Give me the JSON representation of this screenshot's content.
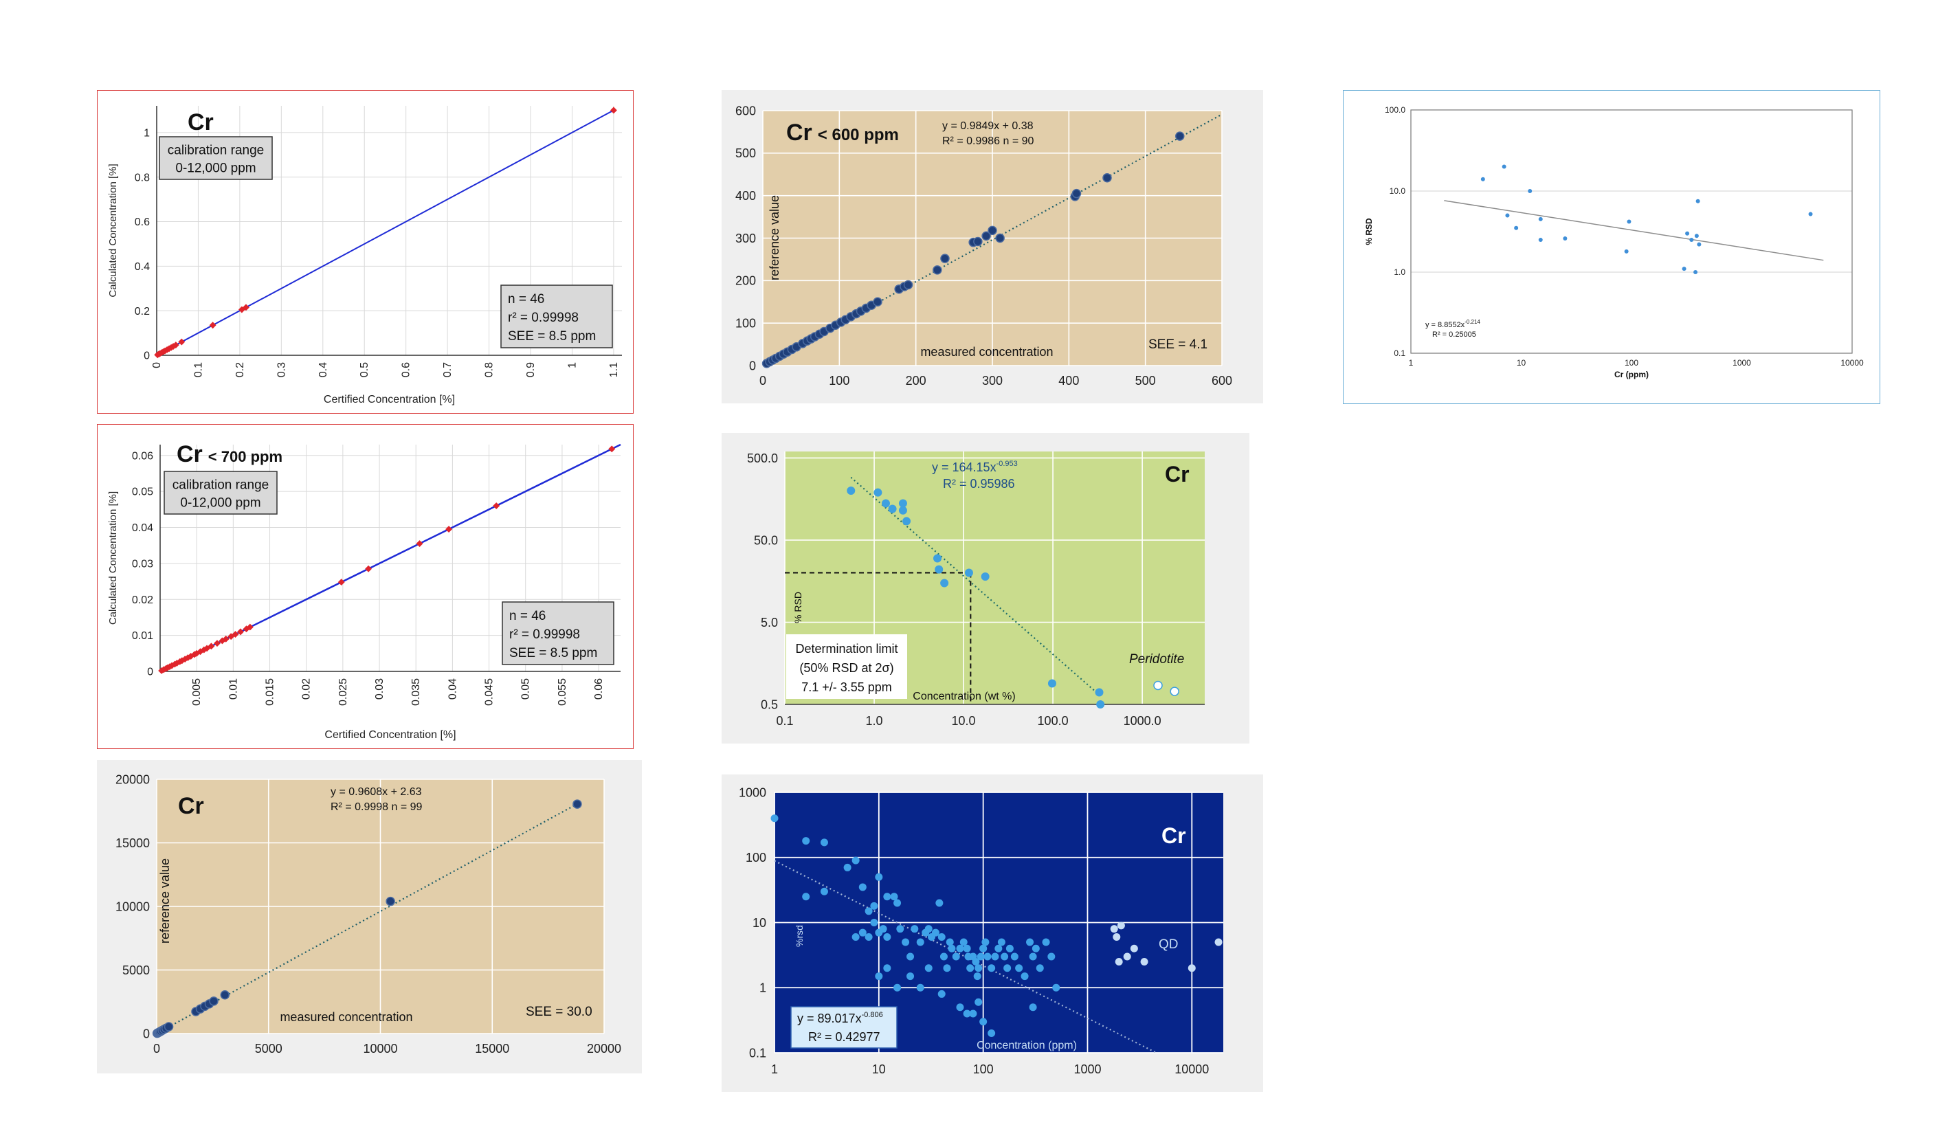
{
  "chart_data": [
    {
      "id": "A",
      "type": "scatter",
      "theme": {
        "bg": "#ffffff",
        "plot": "#ffffff",
        "grid": "#d9d9d9",
        "border": "#d93a3a",
        "point": "#e0242b",
        "line": "#1f2bd6"
      },
      "title": "Cr",
      "xlabel": "Certified Concentration [%]",
      "ylabel": "Calculated Concentration [%]",
      "xlim": [
        0,
        1.12
      ],
      "ylim": [
        0,
        1.12
      ],
      "xticks": [
        0,
        0.1,
        0.2,
        0.3,
        0.4,
        0.5,
        0.6,
        0.7,
        0.8,
        0.9,
        1,
        1.1
      ],
      "xtick_labels": [
        "0",
        "0.1",
        "0.2",
        "0.3",
        "0.4",
        "0.5",
        "0.6",
        "0.7",
        "0.8",
        "0.9",
        "1",
        "1.1"
      ],
      "yticks": [
        0,
        0.2,
        0.4,
        0.6,
        0.8,
        1
      ],
      "ytick_labels": [
        "0",
        "0.2",
        "0.4",
        "0.6",
        "0.8",
        "1"
      ],
      "x": [
        0.002,
        0.005,
        0.008,
        0.012,
        0.016,
        0.02,
        0.025,
        0.03,
        0.035,
        0.04,
        0.046,
        0.06,
        0.135,
        0.205,
        0.215,
        1.1
      ],
      "y": [
        0.002,
        0.005,
        0.008,
        0.012,
        0.016,
        0.02,
        0.025,
        0.03,
        0.035,
        0.04,
        0.046,
        0.06,
        0.135,
        0.205,
        0.215,
        1.1
      ],
      "fit": {
        "x": [
          0,
          1.1
        ],
        "y": [
          0,
          1.1
        ]
      },
      "boxes": [
        "calibration range\n0-12,000 ppm",
        "n = 46\nr² = 0.99998\nSEE = 8.5 ppm"
      ]
    },
    {
      "id": "B",
      "type": "scatter",
      "theme": {
        "bg": "#ffffff",
        "plot": "#ffffff",
        "grid": "#d9d9d9",
        "border": "#d93a3a",
        "point": "#e0242b",
        "line": "#1f2bd6"
      },
      "title": "Cr",
      "title_suffix": "< 700 ppm",
      "xlabel": "Certified Concentration [%]",
      "ylabel": "Calculated Concentration [%]",
      "xlim": [
        0,
        0.063
      ],
      "ylim": [
        0,
        0.063
      ],
      "xticks": [
        0.005,
        0.01,
        0.015,
        0.02,
        0.025,
        0.03,
        0.035,
        0.04,
        0.045,
        0.05,
        0.055,
        0.06
      ],
      "xtick_labels": [
        "0.005",
        "0.01",
        "0.015",
        "0.02",
        "0.025",
        "0.03",
        "0.035",
        "0.04",
        "0.045",
        "0.05",
        "0.055",
        "0.06"
      ],
      "yticks": [
        0,
        0.01,
        0.02,
        0.03,
        0.04,
        0.05,
        0.06
      ],
      "ytick_labels": [
        "0",
        "0.01",
        "0.02",
        "0.03",
        "0.04",
        "0.05",
        "0.06"
      ],
      "x": [
        0.0002,
        0.0005,
        0.0008,
        0.001,
        0.0013,
        0.0016,
        0.002,
        0.0023,
        0.0027,
        0.003,
        0.0034,
        0.0038,
        0.0042,
        0.0047,
        0.005,
        0.0055,
        0.006,
        0.0064,
        0.007,
        0.0078,
        0.0085,
        0.009,
        0.0097,
        0.0103,
        0.011,
        0.0118,
        0.0123,
        0.0248,
        0.0285,
        0.0355,
        0.0395,
        0.046,
        0.0618
      ],
      "y": [
        0.0002,
        0.0005,
        0.0008,
        0.001,
        0.0013,
        0.0016,
        0.002,
        0.0023,
        0.0027,
        0.003,
        0.0034,
        0.0038,
        0.0042,
        0.0047,
        0.005,
        0.0055,
        0.006,
        0.0064,
        0.007,
        0.0078,
        0.0085,
        0.009,
        0.0097,
        0.0103,
        0.011,
        0.0118,
        0.0123,
        0.0248,
        0.0285,
        0.0355,
        0.0395,
        0.046,
        0.0618
      ],
      "fit": {
        "x": [
          0,
          0.063
        ],
        "y": [
          0,
          0.063
        ]
      },
      "boxes": [
        "calibration range\n0-12,000 ppm",
        "n = 46\nr² = 0.99998\nSEE = 8.5 ppm"
      ]
    },
    {
      "id": "C",
      "type": "scatter",
      "theme": {
        "bg": "#efefef",
        "plot": "#e2ceaa",
        "grid": "#ffffff",
        "point": "#1f3f7a",
        "line": "#1f5f6a"
      },
      "title": "Cr",
      "xlabel": "measured concentration",
      "ylabel": "reference value",
      "xlim": [
        0,
        20000
      ],
      "ylim": [
        0,
        20000
      ],
      "xticks": [
        0,
        5000,
        10000,
        15000,
        20000
      ],
      "xtick_labels": [
        "0",
        "5000",
        "10000",
        "15000",
        "20000"
      ],
      "yticks": [
        0,
        5000,
        10000,
        15000,
        20000
      ],
      "ytick_labels": [
        "0",
        "5000",
        "10000",
        "15000",
        "20000"
      ],
      "x": [
        20,
        50,
        90,
        130,
        180,
        250,
        330,
        420,
        540,
        1750,
        1950,
        2150,
        2350,
        2550,
        3050,
        10450,
        18800
      ],
      "y": [
        20,
        50,
        90,
        130,
        180,
        250,
        330,
        420,
        540,
        1730,
        1940,
        2140,
        2330,
        2550,
        3040,
        10400,
        18050
      ],
      "fit": {
        "x": [
          0,
          18800
        ],
        "y": [
          2.63,
          18065
        ]
      },
      "equation": [
        "y = 0.9608x + 2.63",
        "R² = 0.9998  n = 99"
      ],
      "see": "SEE = 30.0"
    },
    {
      "id": "D",
      "type": "scatter",
      "theme": {
        "bg": "#efefef",
        "plot": "#e2ceaa",
        "grid": "#ffffff",
        "point": "#1f3f7a",
        "line": "#1f5f6a"
      },
      "title": "Cr",
      "title_suffix": "< 600 ppm",
      "xlabel": "measured concentration",
      "ylabel": "reference value",
      "xlim": [
        0,
        600
      ],
      "ylim": [
        0,
        600
      ],
      "xticks": [
        0,
        100,
        200,
        300,
        400,
        500,
        600
      ],
      "xtick_labels": [
        "0",
        "100",
        "200",
        "300",
        "400",
        "500",
        "600"
      ],
      "yticks": [
        0,
        100,
        200,
        300,
        400,
        500,
        600
      ],
      "ytick_labels": [
        "0",
        "100",
        "200",
        "300",
        "400",
        "500",
        "600"
      ],
      "x": [
        5,
        9,
        13,
        17,
        22,
        27,
        32,
        38,
        44,
        52,
        58,
        63,
        68,
        74,
        80,
        88,
        95,
        102,
        108,
        115,
        122,
        128,
        135,
        142,
        150,
        178,
        185,
        190,
        228,
        238,
        275,
        281,
        292,
        300,
        310,
        408,
        410,
        450,
        545
      ],
      "y": [
        5,
        9,
        13,
        17,
        22,
        27,
        32,
        38,
        44,
        52,
        58,
        63,
        68,
        74,
        80,
        88,
        95,
        102,
        108,
        115,
        122,
        128,
        135,
        142,
        150,
        180,
        186,
        190,
        225,
        252,
        290,
        292,
        305,
        318,
        300,
        398,
        405,
        442,
        540
      ],
      "fit": {
        "x": [
          0,
          600
        ],
        "y": [
          0.38,
          591.3
        ]
      },
      "equation": [
        "y = 0.9849x + 0.38",
        "R² = 0.9986  n = 90"
      ],
      "see": "SEE = 4.1"
    },
    {
      "id": "E",
      "type": "scatter",
      "theme": {
        "bg": "#efefef",
        "plot": "#c9dc8d",
        "grid": "#ffffff",
        "point": "#3ea0e0",
        "line": "#1f6f6a"
      },
      "title": "Cr",
      "xlabel": "Concentration (wt %)",
      "ylabel": "% RSD",
      "xscale": "log",
      "yscale": "log",
      "xlim": [
        0.1,
        5000
      ],
      "ylim": [
        0.5,
        600
      ],
      "xticks": [
        0.1,
        1,
        10,
        100,
        1000
      ],
      "xtick_labels": [
        "0.1",
        "1.0",
        "10.0",
        "100.0",
        "1000.0"
      ],
      "yticks": [
        0.5,
        5,
        50,
        500
      ],
      "ytick_labels": [
        "0.5",
        "5.0",
        "50.0",
        "500.0"
      ],
      "x": [
        0.55,
        1.1,
        1.35,
        1.6,
        2.1,
        2.1,
        2.3,
        5.1,
        5.3,
        6.1,
        11.5,
        17.5,
        98,
        330,
        340
      ],
      "y": [
        200,
        190,
        140,
        120,
        140,
        115,
        85,
        30,
        22,
        15,
        20,
        18,
        0.9,
        0.7,
        0.5
      ],
      "open_points": {
        "x": [
          1500,
          2300
        ],
        "y": [
          0.85,
          0.72
        ],
        "label": "Peridotite"
      },
      "fit": {
        "coef": 164.15,
        "exp": -0.953,
        "x": [
          0.55,
          350
        ]
      },
      "determination": {
        "x": 12,
        "y": 20
      },
      "equation": [
        "y = 164.15x",
        "-0.953",
        "R² = 0.95986"
      ],
      "box": [
        "Determination limit",
        "(50% RSD at 2σ)",
        "7.1 +/- 3.55 ppm"
      ]
    },
    {
      "id": "F",
      "type": "scatter",
      "theme": {
        "bg": "#efefef",
        "plot": "#07258a",
        "grid": "#ffffff",
        "point": "#3fa2e8",
        "qd": "#c6ddf5",
        "line": "#9fb3d6"
      },
      "title": "Cr",
      "xlabel": "Concentration (ppm)",
      "ylabel": "%rsd",
      "xscale": "log",
      "yscale": "log",
      "xlim": [
        1,
        20000
      ],
      "ylim": [
        0.1,
        1000
      ],
      "xticks": [
        1,
        10,
        100,
        1000,
        10000
      ],
      "xtick_labels": [
        "1",
        "10",
        "100",
        "1000",
        "10000"
      ],
      "yticks": [
        0.1,
        1,
        10,
        100,
        1000
      ],
      "ytick_labels": [
        "0.1",
        "1",
        "10",
        "100",
        "1000"
      ],
      "x": [
        1,
        2,
        3,
        2,
        3,
        5,
        6,
        7,
        8,
        9,
        10,
        11,
        12,
        8,
        6,
        7,
        9,
        10,
        12,
        14,
        15,
        16,
        18,
        20,
        22,
        25,
        28,
        30,
        32,
        35,
        38,
        40,
        42,
        45,
        48,
        50,
        55,
        60,
        65,
        70,
        72,
        75,
        80,
        85,
        88,
        90,
        95,
        100,
        105,
        110,
        120,
        130,
        140,
        150,
        160,
        170,
        180,
        200,
        220,
        250,
        280,
        300,
        320,
        350,
        400,
        450,
        500,
        15,
        20,
        30,
        60,
        70,
        90,
        100,
        80,
        120,
        300,
        25,
        40,
        10,
        12,
        100
      ],
      "y": [
        400,
        180,
        170,
        25,
        30,
        70,
        90,
        35,
        15,
        18,
        50,
        8,
        6,
        6,
        6,
        7,
        10,
        7,
        25,
        25,
        20,
        8,
        5,
        3,
        8,
        5,
        7,
        8,
        6,
        7,
        20,
        6,
        3,
        2,
        5,
        4,
        3,
        4,
        5,
        4,
        3,
        2,
        3,
        2.5,
        1.5,
        2,
        3,
        4,
        5,
        3,
        2,
        3,
        4,
        5,
        3,
        2,
        4,
        3,
        2,
        1.5,
        5,
        3,
        4,
        2,
        5,
        3,
        1,
        1,
        1.5,
        2,
        0.5,
        0.4,
        0.6,
        0.3,
        0.4,
        0.2,
        0.5,
        1,
        0.8,
        1.5,
        2,
        4
      ],
      "qd_points": {
        "x": [
          1800,
          1900,
          2000,
          2100,
          2400,
          2800,
          3500,
          10000,
          18000
        ],
        "y": [
          8,
          6,
          2.5,
          9,
          3,
          4,
          2.5,
          2,
          5
        ],
        "label": "QD"
      },
      "fit": {
        "coef": 89.017,
        "exp": -0.806,
        "x": [
          1,
          4500
        ]
      },
      "equation": [
        "y = 89.017x",
        "-0.806",
        "R² = 0.42977"
      ]
    },
    {
      "id": "G",
      "type": "scatter",
      "theme": {
        "bg": "#ffffff",
        "plot": "#ffffff",
        "grid": "#d0d0d0",
        "border": "#6aaed6",
        "point": "#3f8fd8",
        "line": "#8c8c8c"
      },
      "xlabel": "Cr (ppm)",
      "ylabel": "% RSD",
      "xscale": "log",
      "yscale": "log",
      "xlim": [
        1,
        10000
      ],
      "ylim": [
        0.1,
        100
      ],
      "xticks": [
        1,
        10,
        100,
        1000,
        10000
      ],
      "xtick_labels": [
        "1",
        "10",
        "100",
        "1000",
        "10000"
      ],
      "yticks": [
        0.1,
        1,
        10,
        100
      ],
      "ytick_labels": [
        "0.1",
        "1.0",
        "10.0",
        "100.0"
      ],
      "x": [
        4.5,
        7,
        7.5,
        9,
        12,
        15,
        15,
        25,
        90,
        95,
        300,
        320,
        350,
        380,
        390,
        400,
        410,
        4200
      ],
      "y": [
        14,
        20,
        5,
        3.5,
        10,
        4.5,
        2.5,
        2.6,
        1.8,
        4.2,
        1.1,
        3,
        2.5,
        1,
        2.8,
        7.5,
        2.2,
        5.2
      ],
      "fit": {
        "coef": 8.8552,
        "exp": -0.214,
        "x": [
          2,
          5500
        ]
      },
      "equation": [
        "y = 8.8552x",
        "-0.214",
        "R² = 0.25005"
      ]
    }
  ]
}
